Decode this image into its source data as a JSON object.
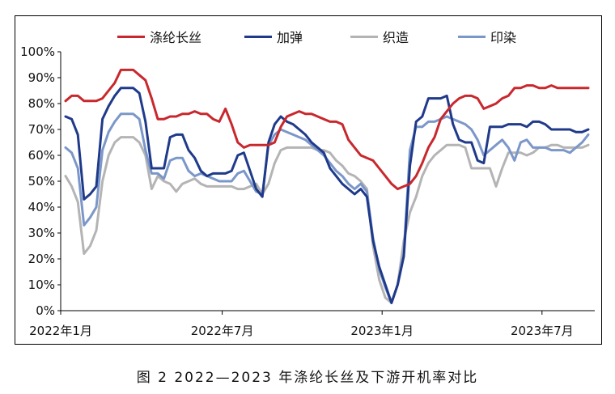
{
  "caption": "图 2 2022—2023 年涤纶长丝及下游开机率对比",
  "chart_data": {
    "type": "line",
    "title": "",
    "xlabel": "",
    "ylabel": "",
    "ylim": [
      0,
      100
    ],
    "y_unit": "%",
    "y_ticks": [
      "0%",
      "10%",
      "20%",
      "30%",
      "40%",
      "50%",
      "60%",
      "70%",
      "80%",
      "90%",
      "100%"
    ],
    "x_ticks": [
      {
        "label": "2022年1月",
        "week": 0
      },
      {
        "label": "2022年7月",
        "week": 26
      },
      {
        "label": "2023年1月",
        "week": 52
      },
      {
        "label": "2023年7月",
        "week": 78
      }
    ],
    "legend_position": "top",
    "grid": false,
    "x_start": "2022年1月",
    "x_interval": "weekly",
    "series": [
      {
        "name": "涤纶长丝",
        "color": "#c8282d",
        "values": [
          81,
          83,
          83,
          81,
          81,
          81,
          82,
          85,
          88,
          93,
          93,
          93,
          91,
          89,
          82,
          74,
          74,
          75,
          75,
          76,
          76,
          77,
          76,
          76,
          74,
          73,
          78,
          72,
          65,
          63,
          64,
          64,
          64,
          64,
          65,
          71,
          75,
          76,
          77,
          76,
          76,
          75,
          74,
          73,
          73,
          72,
          66,
          63,
          60,
          59,
          58,
          55,
          52,
          49,
          47,
          48,
          49,
          52,
          57,
          63,
          67,
          74,
          77,
          80,
          82,
          83,
          83,
          82,
          78,
          79,
          80,
          82,
          83,
          86,
          86,
          87,
          87,
          86,
          86,
          87,
          86,
          86,
          86,
          86,
          86,
          86
        ]
      },
      {
        "name": "加弹",
        "color": "#1f3a8a",
        "values": [
          75,
          74,
          68,
          43,
          45,
          48,
          74,
          79,
          83,
          86,
          86,
          86,
          84,
          73,
          55,
          55,
          55,
          67,
          68,
          68,
          62,
          59,
          54,
          52,
          53,
          53,
          53,
          54,
          60,
          61,
          54,
          47,
          44,
          65,
          72,
          75,
          73,
          72,
          70,
          68,
          65,
          63,
          61,
          55,
          52,
          49,
          47,
          45,
          47,
          44,
          27,
          17,
          10,
          3,
          10,
          21,
          56,
          73,
          75,
          82,
          82,
          82,
          83,
          72,
          66,
          65,
          65,
          58,
          57,
          71,
          71,
          71,
          72,
          72,
          72,
          71,
          73,
          73,
          72,
          70,
          70,
          70,
          70,
          69,
          69,
          70
        ]
      },
      {
        "name": "织造",
        "color": "#b4b4b4",
        "values": [
          52,
          48,
          42,
          22,
          25,
          31,
          50,
          60,
          65,
          67,
          67,
          67,
          65,
          60,
          47,
          52,
          50,
          49,
          46,
          49,
          50,
          51,
          49,
          48,
          48,
          48,
          48,
          48,
          47,
          47,
          48,
          49,
          45,
          49,
          57,
          62,
          63,
          63,
          63,
          63,
          63,
          62,
          62,
          61,
          58,
          56,
          53,
          52,
          50,
          47,
          25,
          12,
          5,
          3,
          10,
          27,
          38,
          44,
          52,
          57,
          60,
          62,
          64,
          64,
          64,
          63,
          55,
          55,
          55,
          55,
          48,
          55,
          61,
          61,
          61,
          60,
          61,
          63,
          63,
          64,
          64,
          63,
          63,
          63,
          63,
          64
        ]
      },
      {
        "name": "印染",
        "color": "#7b97c9",
        "values": [
          63,
          61,
          55,
          33,
          36,
          40,
          62,
          69,
          73,
          76,
          76,
          76,
          74,
          62,
          53,
          53,
          51,
          58,
          59,
          59,
          54,
          52,
          53,
          52,
          51,
          50,
          50,
          50,
          53,
          54,
          50,
          46,
          45,
          64,
          68,
          70,
          69,
          68,
          67,
          66,
          64,
          62,
          60,
          57,
          54,
          52,
          49,
          47,
          49,
          46,
          28,
          16,
          9,
          3,
          10,
          22,
          62,
          71,
          71,
          73,
          73,
          74,
          75,
          74,
          73,
          72,
          70,
          66,
          60,
          62,
          64,
          66,
          63,
          58,
          65,
          66,
          63,
          63,
          63,
          62,
          62,
          62,
          61,
          63,
          65,
          68
        ]
      }
    ]
  }
}
